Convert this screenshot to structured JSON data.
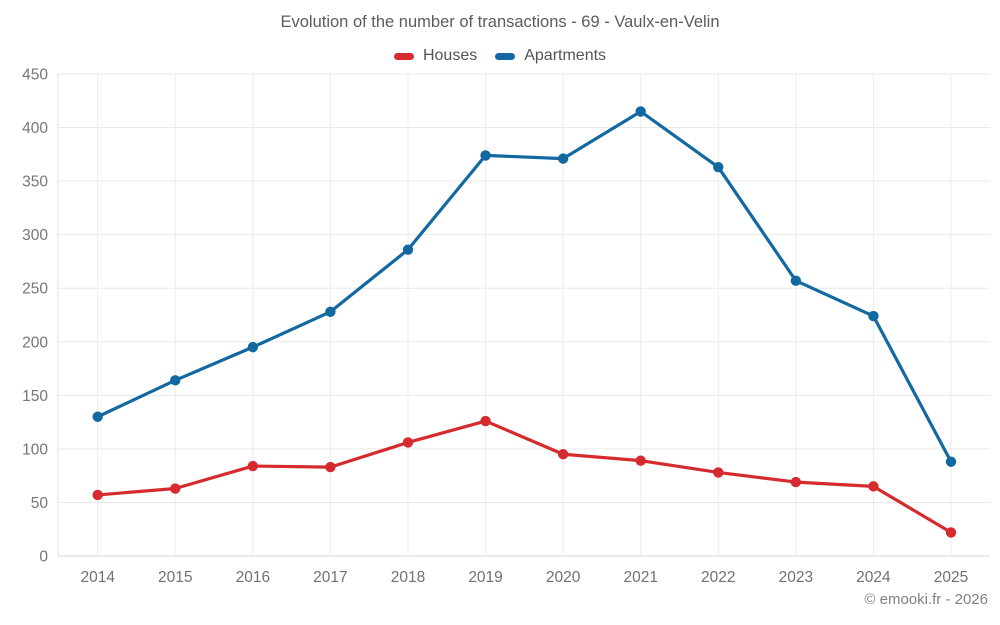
{
  "title": "Evolution of the number of transactions - 69 - Vaulx-en-Velin",
  "legend": [
    {
      "label": "Houses",
      "color": "#d62b2e"
    },
    {
      "label": "Apartments",
      "color": "#1269a2"
    }
  ],
  "footer": {
    "copyright": "© emooki.fr - 2026"
  },
  "chart_data": {
    "type": "line",
    "title": "Evolution of the number of transactions - 69 - Vaulx-en-Velin",
    "categories": [
      "2014",
      "2015",
      "2016",
      "2017",
      "2018",
      "2019",
      "2020",
      "2021",
      "2022",
      "2023",
      "2024",
      "2025"
    ],
    "series": [
      {
        "name": "Houses",
        "color": "#d62b2e",
        "values": [
          57,
          63,
          84,
          83,
          106,
          126,
          95,
          89,
          78,
          69,
          65,
          22
        ]
      },
      {
        "name": "Apartments",
        "color": "#1269a2",
        "values": [
          130,
          164,
          195,
          228,
          286,
          374,
          371,
          415,
          363,
          257,
          224,
          88
        ]
      }
    ],
    "xlabel": "",
    "ylabel": "",
    "ylim": [
      0,
      450
    ],
    "ytick_step": 50,
    "grid": true,
    "legend_position": "top",
    "annotations": [
      "© emooki.fr - 2026"
    ]
  }
}
